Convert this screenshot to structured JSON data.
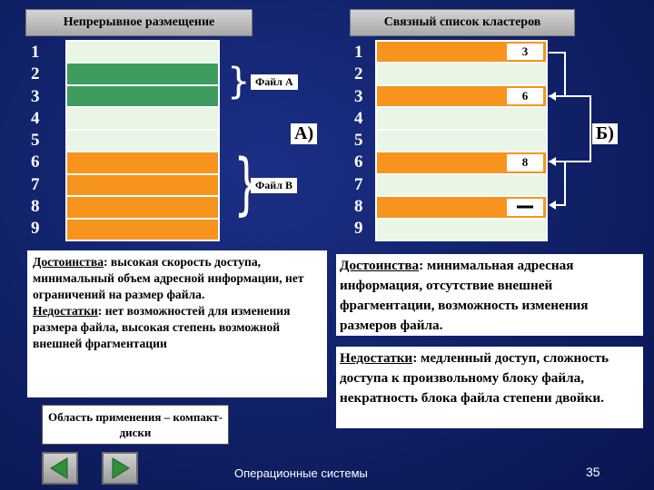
{
  "header": {
    "left_title": "Непрерывное размещение",
    "right_title": "Связный список кластеров"
  },
  "block_numbers": [
    "1",
    "2",
    "3",
    "4",
    "5",
    "6",
    "7",
    "8",
    "9"
  ],
  "contiguous": {
    "file_a_label": "Файл A",
    "file_b_label": "Файл B",
    "section_mark": "A)"
  },
  "linked": {
    "pointers": {
      "row1": "3",
      "row3": "6",
      "row6": "8"
    },
    "section_mark": "Б)"
  },
  "left_text": {
    "advantages_label": "Достоинства",
    "advantages_text": ": высокая скорость доступа, минимальный объем адресной информации, нет ограничений на размер файла.",
    "disadvantages_label": "Недостатки",
    "disadvantages_text": ": нет возможностей для изменения размера файла, высокая степень возможной внешней фрагментации"
  },
  "right_text": {
    "advantages_label": "Достоинства",
    "advantages_text": ": минимальная адресная информация,  отсутствие внешней фрагментации, возможность изменения размеров файла.",
    "disadvantages_label": "Недостатки",
    "disadvantages_text": ": медленный доступ, сложность доступа к произвольному блоку файла, некратность блока файла степени двойки."
  },
  "application": {
    "label": "Область применения – компакт-диски"
  },
  "footer": {
    "title": "Операционные системы",
    "page_number": "35",
    "prev_icon": "arrow-left-icon",
    "next_icon": "arrow-right-icon"
  },
  "colors": {
    "background": "#12236c",
    "file_a": "#3e9c5f",
    "free": "#9ad79b",
    "file_b": "#f7941d"
  }
}
